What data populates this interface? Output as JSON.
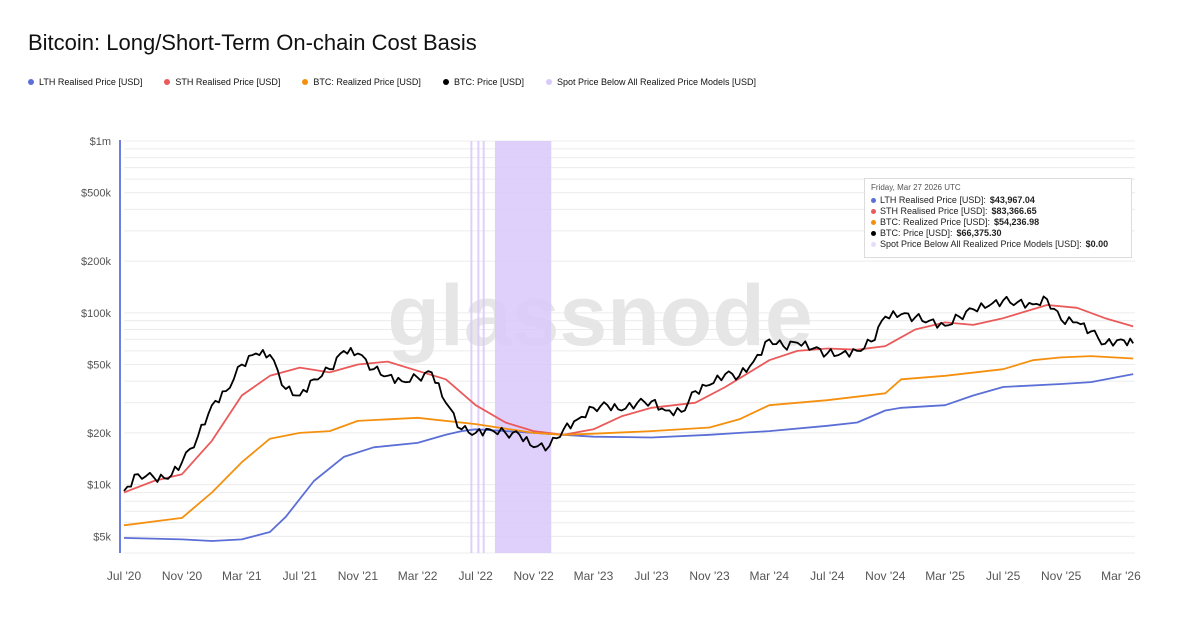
{
  "title": "Bitcoin: Long/Short-Term On-chain Cost Basis",
  "watermark": "glassnode",
  "legend": [
    {
      "label": "LTH Realised Price [USD]",
      "color": "#5b6fd6"
    },
    {
      "label": "STH Realised Price [USD]",
      "color": "#ea5a5a"
    },
    {
      "label": "BTC: Realized Price [USD]",
      "color": "#f5900f"
    },
    {
      "label": "BTC: Price [USD]",
      "color": "#000000"
    },
    {
      "label": "Spot Price Below All Realized Price Models [USD]",
      "color": "#d9c8fa"
    }
  ],
  "tooltip": {
    "date": "Friday, Mar 27 2026 UTC",
    "rows": [
      {
        "label": "LTH Realised Price [USD]: ",
        "value": "$43,967.04",
        "color": "#5b6fd6"
      },
      {
        "label": "STH Realised Price [USD]: ",
        "value": "$83,366.65",
        "color": "#ea5a5a"
      },
      {
        "label": "BTC: Realized Price [USD]: ",
        "value": "$54,236.98",
        "color": "#f5900f"
      },
      {
        "label": "BTC: Price [USD]: ",
        "value": "$66,375.30",
        "color": "#000000"
      },
      {
        "label": "Spot Price Below All Realized Price Models [USD]: ",
        "value": "$0.00",
        "color": "#e6dcfb"
      }
    ]
  },
  "chart_data": {
    "type": "line",
    "title": "Bitcoin: Long/Short-Term On-chain Cost Basis",
    "y_scale": "log",
    "ylim": [
      4000,
      1000000
    ],
    "xlim": [
      "2020-07-01",
      "2026-04-01"
    ],
    "y_ticks": [
      {
        "value": 5000,
        "label": "$5k"
      },
      {
        "value": 10000,
        "label": "$10k"
      },
      {
        "value": 20000,
        "label": "$20k"
      },
      {
        "value": 50000,
        "label": "$50k"
      },
      {
        "value": 100000,
        "label": "$100k"
      },
      {
        "value": 200000,
        "label": "$200k"
      },
      {
        "value": 500000,
        "label": "$500k"
      },
      {
        "value": 1000000,
        "label": "$1m"
      }
    ],
    "x_ticks": [
      {
        "t": 2020.5,
        "label": "Jul '20"
      },
      {
        "t": 2020.83,
        "label": "Nov '20"
      },
      {
        "t": 2021.17,
        "label": "Mar '21"
      },
      {
        "t": 2021.5,
        "label": "Jul '21"
      },
      {
        "t": 2021.83,
        "label": "Nov '21"
      },
      {
        "t": 2022.17,
        "label": "Mar '22"
      },
      {
        "t": 2022.5,
        "label": "Jul '22"
      },
      {
        "t": 2022.83,
        "label": "Nov '22"
      },
      {
        "t": 2023.17,
        "label": "Mar '23"
      },
      {
        "t": 2023.5,
        "label": "Jul '23"
      },
      {
        "t": 2023.83,
        "label": "Nov '23"
      },
      {
        "t": 2024.17,
        "label": "Mar '24"
      },
      {
        "t": 2024.5,
        "label": "Jul '24"
      },
      {
        "t": 2024.83,
        "label": "Nov '24"
      },
      {
        "t": 2025.17,
        "label": "Mar '25"
      },
      {
        "t": 2025.5,
        "label": "Jul '25"
      },
      {
        "t": 2025.83,
        "label": "Nov '25"
      },
      {
        "t": 2026.17,
        "label": "Mar '26"
      }
    ],
    "series": [
      {
        "name": "LTH Realised Price [USD]",
        "color": "#5b6fd6",
        "t": [
          2020.5,
          2020.83,
          2021.0,
          2021.17,
          2021.33,
          2021.42,
          2021.58,
          2021.75,
          2021.92,
          2022.17,
          2022.33,
          2022.42,
          2022.5,
          2022.67,
          2022.83,
          2023.0,
          2023.17,
          2023.5,
          2023.83,
          2024.0,
          2024.17,
          2024.5,
          2024.67,
          2024.83,
          2024.92,
          2025.17,
          2025.33,
          2025.5,
          2025.83,
          2026.0,
          2026.24
        ],
        "values": [
          4900,
          4800,
          4700,
          4800,
          5300,
          6500,
          10500,
          14500,
          16500,
          17500,
          19500,
          20500,
          21000,
          20500,
          20000,
          19500,
          19000,
          18800,
          19500,
          20000,
          20500,
          22000,
          23000,
          27000,
          28000,
          29000,
          33000,
          37000,
          38500,
          39500,
          44000
        ]
      },
      {
        "name": "STH Realised Price [USD]",
        "color": "#ea5a5a",
        "t": [
          2020.5,
          2020.67,
          2020.83,
          2021.0,
          2021.17,
          2021.33,
          2021.5,
          2021.67,
          2021.83,
          2022.0,
          2022.17,
          2022.33,
          2022.5,
          2022.67,
          2022.83,
          2023.0,
          2023.17,
          2023.33,
          2023.5,
          2023.75,
          2023.92,
          2024.17,
          2024.33,
          2024.5,
          2024.67,
          2024.83,
          2025.0,
          2025.17,
          2025.33,
          2025.5,
          2025.75,
          2025.92,
          2026.08,
          2026.24
        ],
        "values": [
          9000,
          10500,
          11500,
          18000,
          33000,
          43000,
          48000,
          45000,
          50000,
          52000,
          46000,
          41000,
          29000,
          23000,
          20500,
          19500,
          21000,
          25000,
          28000,
          30000,
          37000,
          53000,
          60000,
          62000,
          61000,
          64000,
          80000,
          88000,
          85000,
          93000,
          111000,
          107000,
          93000,
          83400
        ]
      },
      {
        "name": "BTC: Realized Price [USD]",
        "color": "#f5900f",
        "t": [
          2020.5,
          2020.83,
          2021.0,
          2021.17,
          2021.33,
          2021.5,
          2021.67,
          2021.83,
          2022.17,
          2022.5,
          2022.83,
          2023.0,
          2023.17,
          2023.5,
          2023.83,
          2024.0,
          2024.17,
          2024.5,
          2024.83,
          2024.92,
          2025.17,
          2025.5,
          2025.67,
          2025.83,
          2026.0,
          2026.24
        ],
        "values": [
          5800,
          6400,
          9000,
          13500,
          18500,
          20000,
          20500,
          23500,
          24500,
          22500,
          20000,
          19500,
          19800,
          20500,
          21500,
          24000,
          29000,
          31000,
          34000,
          41000,
          43000,
          47000,
          53000,
          55000,
          56000,
          54200
        ]
      },
      {
        "name": "BTC: Price [USD]",
        "color": "#000000",
        "t": [
          2020.5,
          2020.58,
          2020.67,
          2020.75,
          2020.83,
          2020.92,
          2021.0,
          2021.08,
          2021.17,
          2021.25,
          2021.33,
          2021.42,
          2021.5,
          2021.58,
          2021.67,
          2021.75,
          2021.83,
          2021.92,
          2022.0,
          2022.08,
          2022.17,
          2022.25,
          2022.33,
          2022.42,
          2022.5,
          2022.58,
          2022.67,
          2022.75,
          2022.83,
          2022.92,
          2023.0,
          2023.08,
          2023.17,
          2023.25,
          2023.33,
          2023.42,
          2023.5,
          2023.58,
          2023.67,
          2023.75,
          2023.83,
          2023.92,
          2024.0,
          2024.08,
          2024.17,
          2024.25,
          2024.33,
          2024.42,
          2024.5,
          2024.58,
          2024.67,
          2024.75,
          2024.83,
          2024.92,
          2025.0,
          2025.08,
          2025.17,
          2025.25,
          2025.33,
          2025.42,
          2025.5,
          2025.58,
          2025.67,
          2025.75,
          2025.83,
          2025.92,
          2026.0,
          2026.08,
          2026.17,
          2026.24
        ],
        "values": [
          9200,
          11500,
          11000,
          10800,
          13500,
          19000,
          29000,
          35000,
          50000,
          58000,
          57000,
          36000,
          33000,
          41000,
          47000,
          60000,
          58000,
          47000,
          43000,
          40000,
          42000,
          45000,
          30000,
          21000,
          20000,
          21000,
          20000,
          19500,
          16500,
          16800,
          21000,
          24000,
          28000,
          29000,
          27000,
          30000,
          30500,
          27000,
          26500,
          35000,
          38000,
          44000,
          43000,
          52000,
          70000,
          64000,
          67000,
          62000,
          58000,
          58000,
          60000,
          68000,
          95000,
          98000,
          94000,
          90000,
          84000,
          95000,
          105000,
          110000,
          118000,
          115000,
          112000,
          120000,
          91000,
          88000,
          78000,
          66000,
          70000,
          66400
        ]
      }
    ],
    "shaded_below_all_models": [
      [
        2022.47,
        2022.48
      ],
      [
        2022.51,
        2022.52
      ],
      [
        2022.54,
        2022.55
      ],
      [
        2022.61,
        2022.93
      ]
    ]
  }
}
